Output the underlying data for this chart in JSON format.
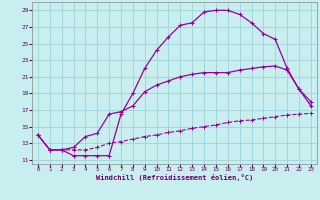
{
  "xlabel": "Windchill (Refroidissement éolien,°C)",
  "bg_color": "#c8eef0",
  "grid_color": "#a0d8dc",
  "line_color": "#990099",
  "xlim": [
    -0.5,
    23.5
  ],
  "ylim": [
    10.5,
    30.0
  ],
  "xticks": [
    0,
    1,
    2,
    3,
    4,
    5,
    6,
    7,
    8,
    9,
    10,
    11,
    12,
    13,
    14,
    15,
    16,
    17,
    18,
    19,
    20,
    21,
    22,
    23
  ],
  "yticks": [
    11,
    13,
    15,
    17,
    19,
    21,
    23,
    25,
    27,
    29
  ],
  "curve1_x": [
    0,
    1,
    2,
    3,
    4,
    5,
    6,
    7,
    8,
    9,
    10,
    11,
    12,
    13,
    14,
    15,
    16,
    17,
    18,
    19,
    20,
    21,
    22,
    23
  ],
  "curve1_y": [
    14.0,
    12.2,
    12.2,
    12.2,
    12.2,
    12.5,
    13.0,
    13.2,
    13.5,
    13.8,
    14.0,
    14.3,
    14.5,
    14.8,
    15.0,
    15.2,
    15.5,
    15.7,
    15.8,
    16.0,
    16.2,
    16.4,
    16.5,
    16.6
  ],
  "curve2_x": [
    0,
    1,
    2,
    3,
    4,
    5,
    6,
    7,
    8,
    9,
    10,
    11,
    12,
    13,
    14,
    15,
    16,
    17,
    18,
    19,
    20,
    21,
    22,
    23
  ],
  "curve2_y": [
    14.0,
    12.2,
    12.2,
    12.5,
    13.8,
    14.2,
    16.5,
    16.8,
    17.5,
    19.2,
    20.0,
    20.5,
    21.0,
    21.3,
    21.5,
    21.5,
    21.5,
    21.8,
    22.0,
    22.2,
    22.3,
    21.8,
    19.5,
    18.0
  ],
  "curve3_x": [
    0,
    1,
    2,
    3,
    4,
    5,
    6,
    7,
    8,
    9,
    10,
    11,
    12,
    13,
    14,
    15,
    16,
    17,
    18,
    19,
    20,
    21,
    22,
    23
  ],
  "curve3_y": [
    14.0,
    12.2,
    12.2,
    11.5,
    11.5,
    11.5,
    11.5,
    16.5,
    19.0,
    22.0,
    24.2,
    25.8,
    27.2,
    27.5,
    28.8,
    29.0,
    29.0,
    28.5,
    27.5,
    26.2,
    25.5,
    22.0,
    19.5,
    17.5
  ]
}
